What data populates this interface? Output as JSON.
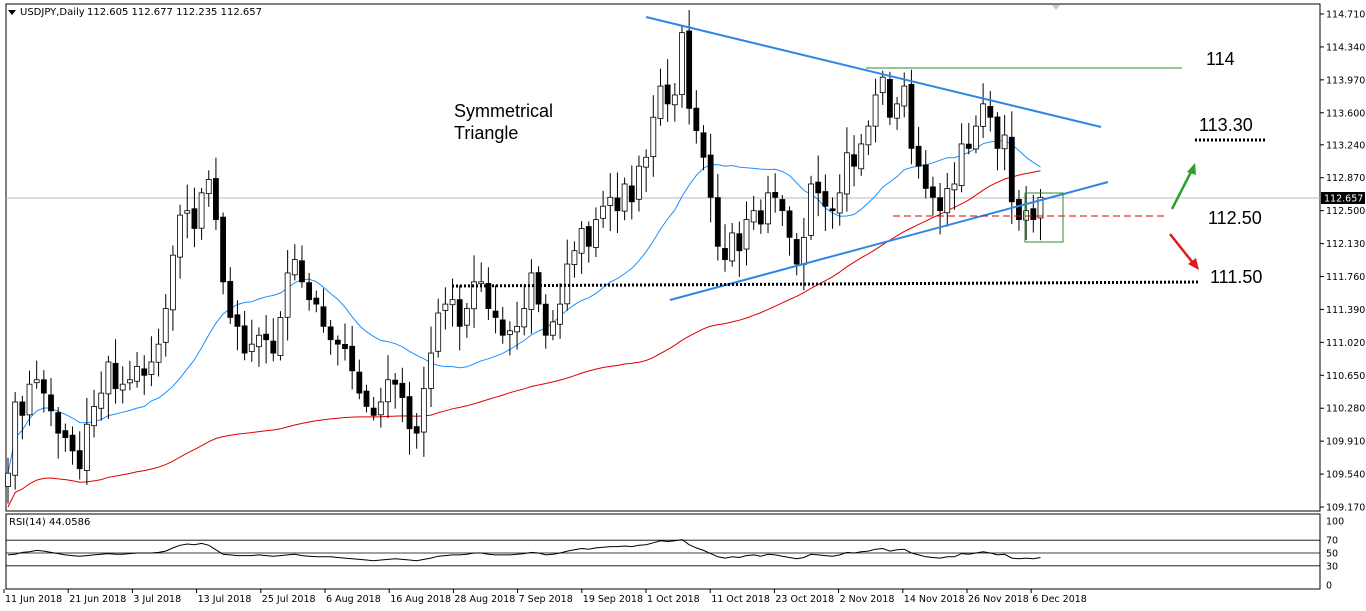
{
  "header": {
    "symbol_label": "USDJPY,Daily",
    "ohlc": "112.605 112.677 112.235 112.657"
  },
  "rsi_header": "RSI(14) 44.0586",
  "current_price": "112.657",
  "colors": {
    "bull": "#ffffff",
    "bear": "#000000",
    "ma_fast": "#1e90ff",
    "ma_slow": "#dd0000",
    "trendline": "#2f87e3",
    "resistance": "#2e8b2e",
    "up_arrow": "#2e9e2e",
    "down_arrow": "#dd1c1c"
  },
  "chart_data": [
    {
      "type": "candlestick",
      "title": "USDJPY,Daily",
      "y_ticks": [
        "114.710",
        "114.340",
        "113.970",
        "113.600",
        "113.240",
        "112.870",
        "112.500",
        "112.130",
        "111.760",
        "111.390",
        "111.020",
        "110.650",
        "110.280",
        "109.910",
        "109.540",
        "109.170"
      ],
      "ylim": [
        109.17,
        114.71
      ],
      "x_ticks": [
        "11 Jun 2018",
        "21 Jun 2018",
        "3 Jul 2018",
        "13 Jul 2018",
        "25 Jul 2018",
        "6 Aug 2018",
        "16 Aug 2018",
        "28 Aug 2018",
        "7 Sep 2018",
        "19 Sep 2018",
        "1 Oct 2018",
        "11 Oct 2018",
        "23 Oct 2018",
        "2 Nov 2018",
        "14 Nov 2018",
        "26 Nov 2018",
        "6 Dec 2018"
      ],
      "closes": [
        109.55,
        110.35,
        110.2,
        110.55,
        110.6,
        110.45,
        110.25,
        110.0,
        109.95,
        109.8,
        109.6,
        110.1,
        110.3,
        110.45,
        110.8,
        110.5,
        110.55,
        110.6,
        110.75,
        110.65,
        110.8,
        111.0,
        111.4,
        112.0,
        112.45,
        112.5,
        112.3,
        112.7,
        112.85,
        112.4,
        111.7,
        111.3,
        111.2,
        110.9,
        111.0,
        111.1,
        111.05,
        110.9,
        111.3,
        111.8,
        111.95,
        111.7,
        111.5,
        111.45,
        111.2,
        111.05,
        111.0,
        110.95,
        110.7,
        110.45,
        110.3,
        110.2,
        110.35,
        110.6,
        110.55,
        110.4,
        110.05,
        110.0,
        110.5,
        110.9,
        111.35,
        111.45,
        111.5,
        111.2,
        111.4,
        111.7,
        111.7,
        111.4,
        111.3,
        111.1,
        111.15,
        111.2,
        111.4,
        111.8,
        111.45,
        111.1,
        111.25,
        111.45,
        111.9,
        112.05,
        112.3,
        112.1,
        112.4,
        112.55,
        112.65,
        112.5,
        112.8,
        112.6,
        113.0,
        113.1,
        113.55,
        113.9,
        113.7,
        113.8,
        114.5,
        113.65,
        113.4,
        113.1,
        112.65,
        112.1,
        111.95,
        112.25,
        112.05,
        112.4,
        112.5,
        112.35,
        112.7,
        112.65,
        112.5,
        112.2,
        111.9,
        112.2,
        112.8,
        112.7,
        112.55,
        112.5,
        112.7,
        113.15,
        113.0,
        113.25,
        113.45,
        113.8,
        114.0,
        113.55,
        113.7,
        113.9,
        113.2,
        113.0,
        112.75,
        112.65,
        112.5,
        112.75,
        112.8,
        113.25,
        113.2,
        113.45,
        113.7,
        113.55,
        113.2,
        113.35,
        112.6,
        112.4,
        112.5,
        112.4,
        112.65
      ],
      "ma_fast": {
        "from": 109.35,
        "to": 113.05,
        "label_series": "moving average (blue)"
      },
      "ma_slow": {
        "from": 109.17,
        "to": 112.3,
        "label_series": "moving average (red)"
      },
      "annotations": {
        "pattern_label_line1": "Symmetrical",
        "pattern_label_line2": "Triangle",
        "level_114": "114",
        "level_113_30": "113.30",
        "level_112_50": "112.50",
        "level_111_50": "111.50"
      }
    },
    {
      "type": "line",
      "title": "RSI(14) 44.0586",
      "y_ticks": [
        "100",
        "70",
        "50",
        "30",
        "0"
      ],
      "levels": [
        70,
        50,
        30
      ],
      "ylim": [
        0,
        100
      ],
      "values": [
        47,
        48,
        51,
        52,
        54,
        53,
        51,
        49,
        47,
        46,
        45,
        46,
        47,
        48,
        49,
        48,
        48,
        49,
        50,
        50,
        50,
        51,
        53,
        58,
        62,
        64,
        63,
        65,
        62,
        55,
        48,
        47,
        46,
        46,
        46,
        47,
        46,
        45,
        46,
        47,
        48,
        46,
        45,
        44,
        44,
        44,
        43,
        42,
        41,
        40,
        39,
        38,
        39,
        40,
        41,
        40,
        39,
        38,
        40,
        42,
        45,
        46,
        47,
        47,
        48,
        50,
        50,
        48,
        47,
        47,
        47,
        48,
        49,
        51,
        50,
        47,
        48,
        50,
        53,
        55,
        57,
        56,
        58,
        59,
        60,
        60,
        61,
        60,
        62,
        63,
        66,
        69,
        68,
        69,
        71,
        63,
        58,
        54,
        49,
        44,
        42,
        44,
        43,
        46,
        47,
        45,
        48,
        47,
        45,
        43,
        41,
        43,
        48,
        47,
        46,
        45,
        47,
        51,
        50,
        52,
        53,
        56,
        57,
        53,
        55,
        56,
        50,
        47,
        44,
        43,
        42,
        44,
        44,
        49,
        48,
        50,
        52,
        50,
        47,
        48,
        42,
        41,
        42,
        41,
        43
      ]
    }
  ]
}
